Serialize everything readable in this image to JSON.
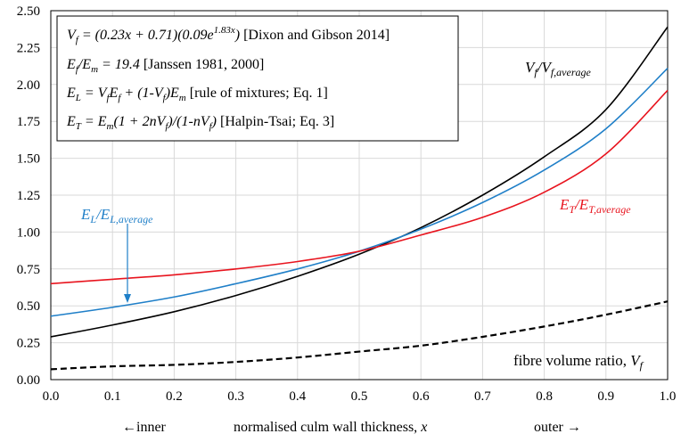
{
  "chart_data": {
    "type": "line",
    "xlabel": "normalised culm wall thickness, x",
    "xlabel_left": "←inner",
    "xlabel_right": "outer →",
    "xlim": [
      0.0,
      1.0
    ],
    "ylim": [
      0.0,
      2.5
    ],
    "grid": true,
    "x_ticks": [
      "0.0",
      "0.1",
      "0.2",
      "0.3",
      "0.4",
      "0.5",
      "0.6",
      "0.7",
      "0.8",
      "0.9",
      "1.0"
    ],
    "y_ticks": [
      "0.00",
      "0.25",
      "0.50",
      "0.75",
      "1.00",
      "1.25",
      "1.50",
      "1.75",
      "2.00",
      "2.25",
      "2.50"
    ],
    "x": [
      0.0,
      0.1,
      0.2,
      0.3,
      0.4,
      0.5,
      0.6,
      0.7,
      0.8,
      0.9,
      1.0
    ],
    "series": [
      {
        "name": "Vf/Vf,average",
        "color": "#000000",
        "dash": "solid",
        "values": [
          0.29,
          0.37,
          0.46,
          0.57,
          0.7,
          0.85,
          1.03,
          1.25,
          1.51,
          1.83,
          2.39
        ]
      },
      {
        "name": "EL/EL,average",
        "color": "#1f7fc8",
        "dash": "solid",
        "values": [
          0.43,
          0.49,
          0.56,
          0.65,
          0.75,
          0.87,
          1.02,
          1.2,
          1.42,
          1.7,
          2.11
        ]
      },
      {
        "name": "ET/ET,average",
        "color": "#e8141e",
        "dash": "solid",
        "values": [
          0.65,
          0.68,
          0.71,
          0.75,
          0.8,
          0.87,
          0.98,
          1.1,
          1.27,
          1.53,
          1.96
        ]
      },
      {
        "name": "fibre volume ratio, Vf",
        "color": "#000000",
        "dash": "dashed",
        "values": [
          0.07,
          0.09,
          0.1,
          0.12,
          0.15,
          0.19,
          0.23,
          0.29,
          0.36,
          0.44,
          0.53
        ]
      }
    ],
    "legend_box": [
      "Vf = (0.23x + 0.71)(0.09e^(1.83x)) [Dixon and Gibson 2014]",
      "Ef/Em = 19.4 [Janssen 1981, 2000]",
      "EL = VfEf + (1-Vf)Em [rule of mixtures; Eq. 1]",
      "ET = Em(1 + 2nVf)/(1-nVf) [Halpin-Tsai; Eq. 3]"
    ],
    "annotations": [
      "Vf/Vf,average",
      "EL/EL,average",
      "ET/ET,average",
      "fibre volume ratio, Vf"
    ]
  }
}
